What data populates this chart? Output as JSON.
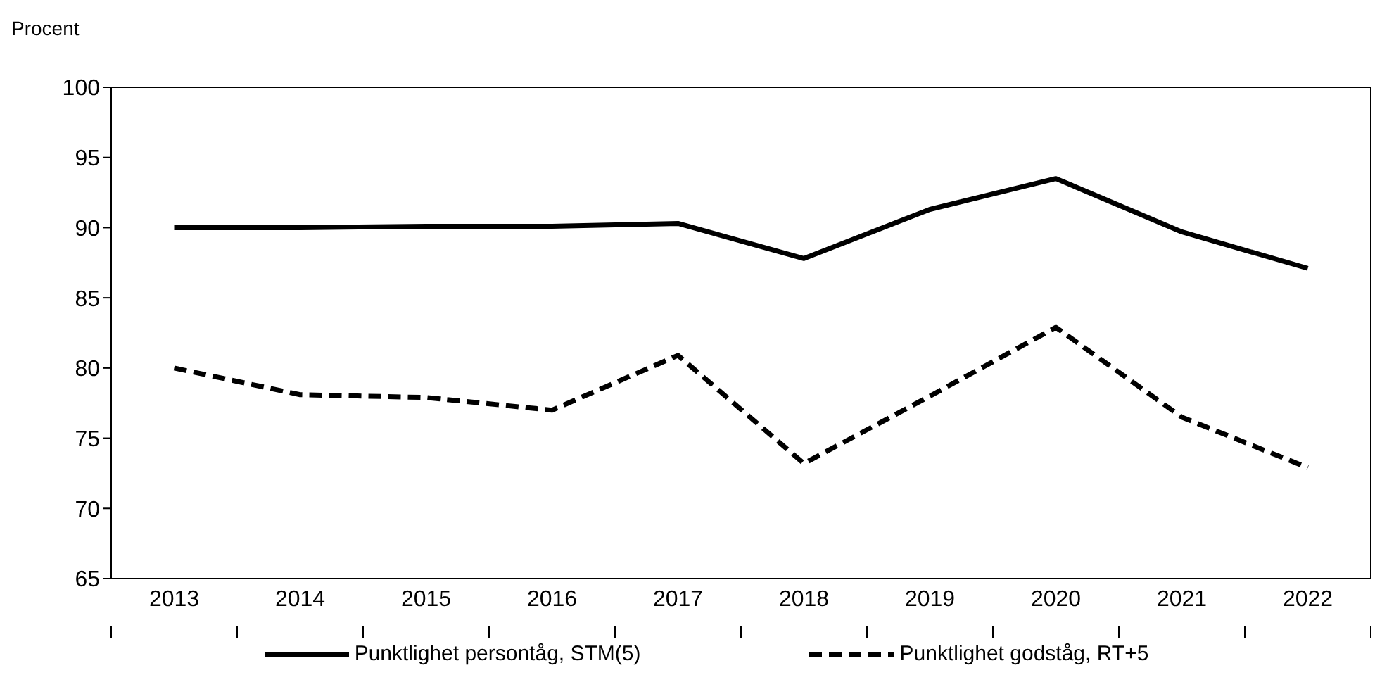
{
  "chart_data": {
    "type": "line",
    "ylabel": "Procent",
    "categories": [
      "2013",
      "2014",
      "2015",
      "2016",
      "2017",
      "2018",
      "2019",
      "2020",
      "2021",
      "2022"
    ],
    "series": [
      {
        "name": "Punktlighet persontåg, STM(5)",
        "color": "#000000",
        "line_style": "solid",
        "values": [
          90.0,
          90.0,
          90.1,
          90.1,
          90.3,
          87.8,
          91.3,
          93.5,
          89.7,
          87.1
        ]
      },
      {
        "name": "Punktlighet godståg, RT+5",
        "color": "#000000",
        "line_style": "dashed",
        "values": [
          80.0,
          78.1,
          77.9,
          77.0,
          80.9,
          73.2,
          78.0,
          82.9,
          76.5,
          72.9
        ]
      }
    ],
    "ylim": [
      65,
      100
    ],
    "yticks": [
      65,
      70,
      75,
      80,
      85,
      90,
      95,
      100
    ],
    "grid": false,
    "legend": "bottom",
    "marker": "none"
  }
}
